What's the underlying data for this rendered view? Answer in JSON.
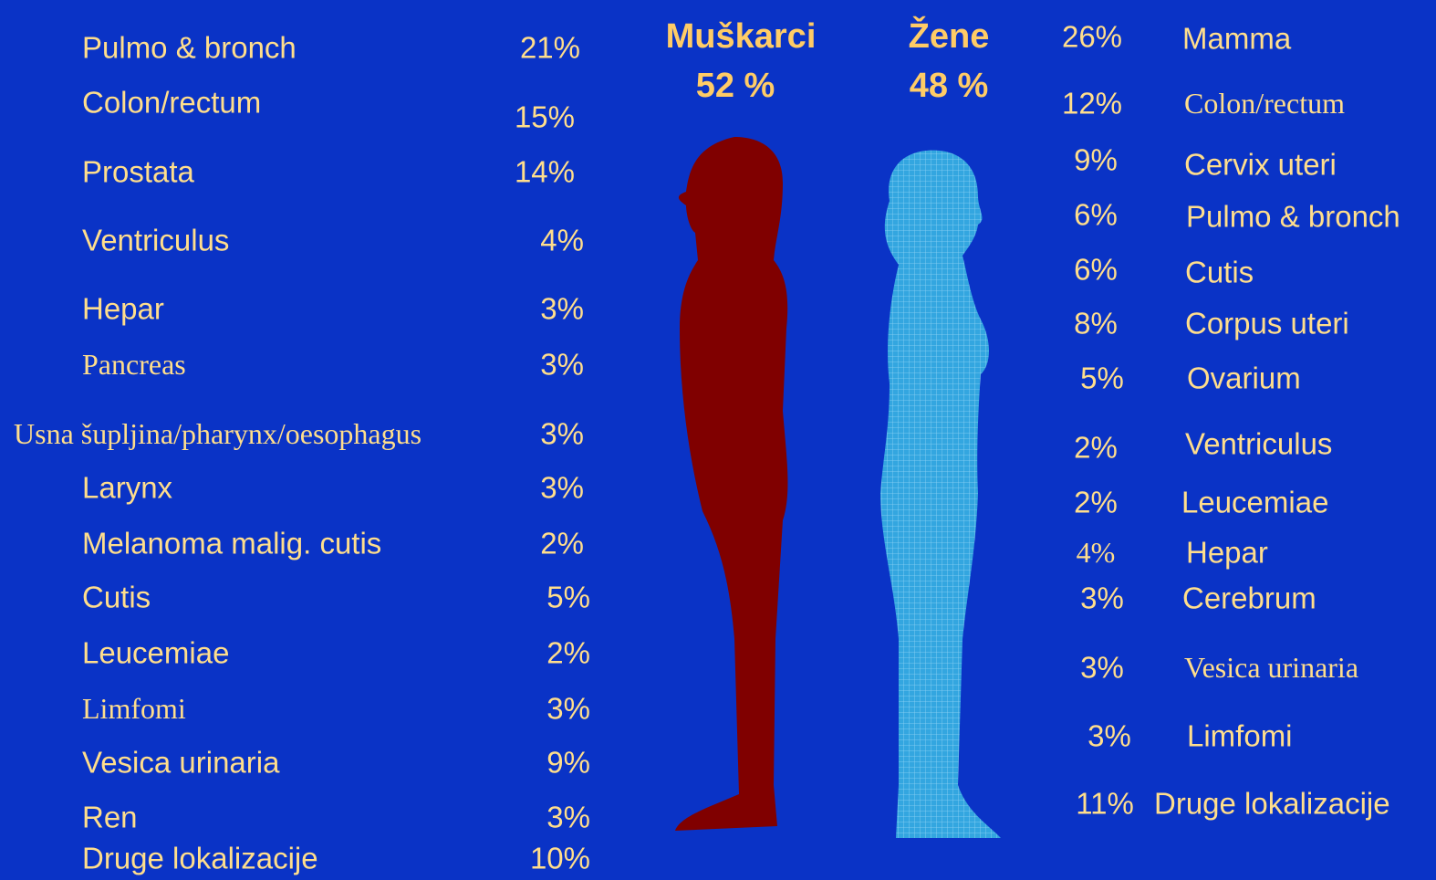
{
  "men": {
    "title": "Muškarci",
    "share": "52 %",
    "items": [
      {
        "label": "Pulmo & bronch",
        "percent": "21%"
      },
      {
        "label": "Colon/rectum",
        "percent": "15%"
      },
      {
        "label": "Prostata",
        "percent": "14%"
      },
      {
        "label": "Ventriculus",
        "percent": "4%"
      },
      {
        "label": "Hepar",
        "percent": "3%"
      },
      {
        "label": "Pancreas",
        "percent": "3%"
      },
      {
        "label": "Usna šupljina/pharynx/oesophagus",
        "percent": "3%"
      },
      {
        "label": "Larynx",
        "percent": "3%"
      },
      {
        "label": "Melanoma malig. cutis",
        "percent": "2%"
      },
      {
        "label": "Cutis",
        "percent": "5%"
      },
      {
        "label": "Leucemiae",
        "percent": "2%"
      },
      {
        "label": "Limfomi",
        "percent": "3%"
      },
      {
        "label": "Vesica urinaria",
        "percent": "9%"
      },
      {
        "label": "Ren",
        "percent": "3%"
      },
      {
        "label": "Druge lokalizacije",
        "percent": "10%"
      }
    ]
  },
  "women": {
    "title": "Žene",
    "share": "48 %",
    "items": [
      {
        "label": "Mamma",
        "percent": "26%"
      },
      {
        "label": "Colon/rectum",
        "percent": "12%"
      },
      {
        "label": "Cervix uteri",
        "percent": "9%"
      },
      {
        "label": "Pulmo & bronch",
        "percent": "6%"
      },
      {
        "label": "Cutis",
        "percent": "6%"
      },
      {
        "label": "Corpus uteri",
        "percent": "8%"
      },
      {
        "label": "Ovarium",
        "percent": "5%"
      },
      {
        "label": "Ventriculus",
        "percent": "2%"
      },
      {
        "label": "Leucemiae",
        "percent": "2%"
      },
      {
        "label": "Hepar",
        "percent": "4%"
      },
      {
        "label": "Cerebrum",
        "percent": "3%"
      },
      {
        "label": "Vesica urinaria",
        "percent": "3%"
      },
      {
        "label": "Limfomi",
        "percent": "3%"
      },
      {
        "label": "Druge lokalizacije",
        "percent": "11%"
      }
    ]
  }
}
